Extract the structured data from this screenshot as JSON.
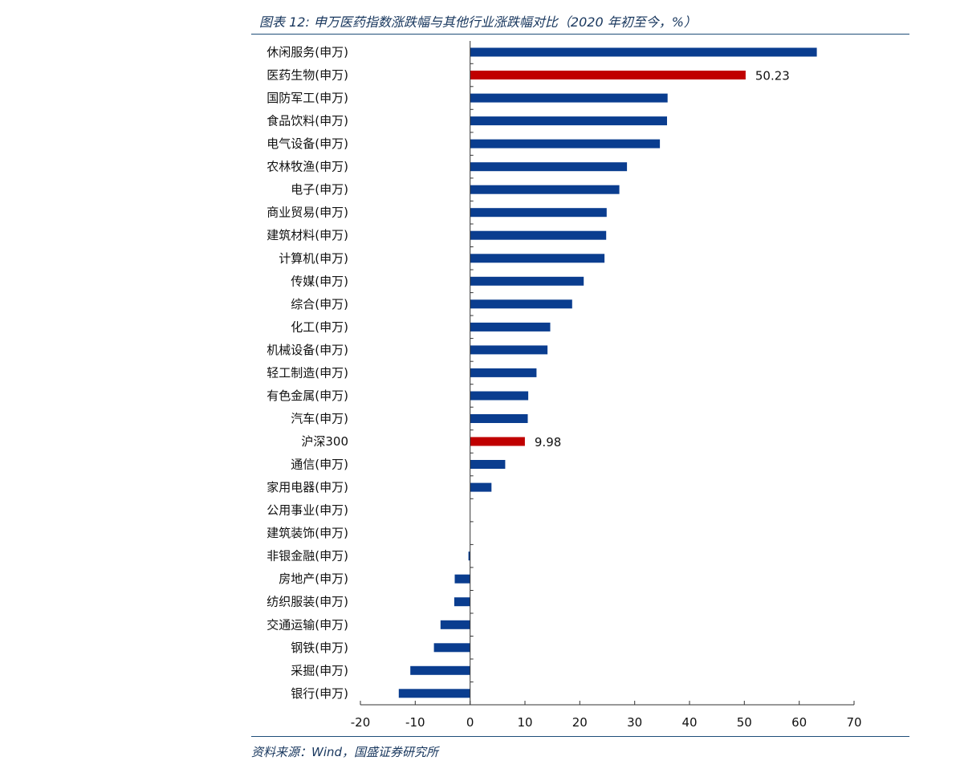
{
  "header": {
    "title": "图表 12:  申万医药指数涨跌幅与其他行业涨跌幅对比（2020 年初至今，%）"
  },
  "footer": {
    "source": "资料来源：Wind，国盛证券研究所"
  },
  "colors": {
    "bar_default": "#0a3d8f",
    "bar_highlight": "#c00000",
    "title_text": "#17365d",
    "rule": "#1f4e79"
  },
  "chart_data": {
    "type": "bar",
    "orientation": "horizontal",
    "title": "",
    "xlabel": "",
    "ylabel": "",
    "xlim": [
      -20,
      70
    ],
    "x_ticks": [
      -20,
      -10,
      0,
      10,
      20,
      30,
      40,
      50,
      60,
      70
    ],
    "grid": false,
    "legend": "none",
    "categories": [
      "休闲服务(申万)",
      "医药生物(申万)",
      "国防军工(申万)",
      "食品饮料(申万)",
      "电气设备(申万)",
      "农林牧渔(申万)",
      "电子(申万)",
      "商业贸易(申万)",
      "建筑材料(申万)",
      "计算机(申万)",
      "传媒(申万)",
      "综合(申万)",
      "化工(申万)",
      "机械设备(申万)",
      "轻工制造(申万)",
      "有色金属(申万)",
      "汽车(申万)",
      "沪深300",
      "通信(申万)",
      "家用电器(申万)",
      "公用事业(申万)",
      "建筑装饰(申万)",
      "非银金融(申万)",
      "房地产(申万)",
      "纺织服装(申万)",
      "交通运输(申万)",
      "钢铁(申万)",
      "采掘(申万)",
      "银行(申万)"
    ],
    "values": [
      63.2,
      50.23,
      36.0,
      35.9,
      34.6,
      28.6,
      27.2,
      24.9,
      24.8,
      24.5,
      20.7,
      18.6,
      14.6,
      14.1,
      12.1,
      10.6,
      10.5,
      9.98,
      6.4,
      3.9,
      0,
      0,
      -0.3,
      -2.8,
      -2.9,
      -5.4,
      -6.6,
      -10.9,
      -13.0
    ],
    "highlight": [
      "医药生物(申万)",
      "沪深300"
    ],
    "data_labels": [
      {
        "category": "医药生物(申万)",
        "text": "50.23"
      },
      {
        "category": "沪深300",
        "text": "9.98"
      }
    ]
  }
}
